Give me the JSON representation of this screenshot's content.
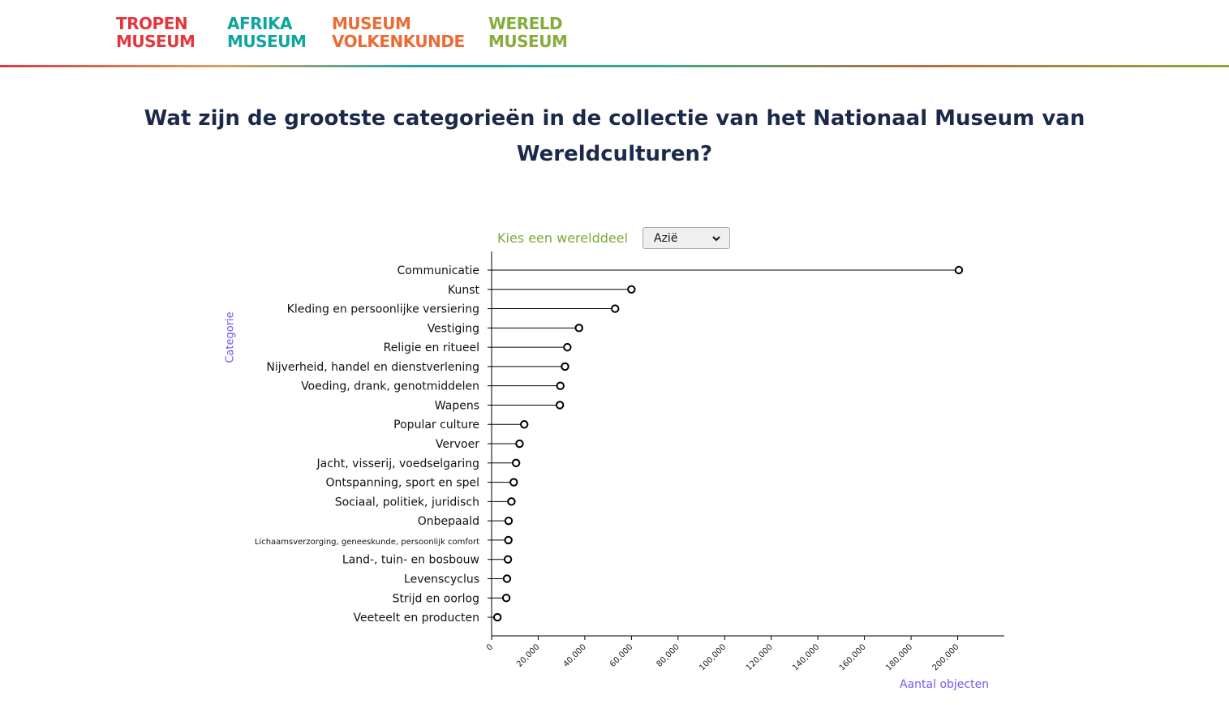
{
  "header": {
    "logos": [
      {
        "lines": [
          "Tropen",
          "Museum"
        ]
      },
      {
        "lines": [
          "Afrika",
          "Museum"
        ]
      },
      {
        "lines": [
          "Museum",
          "Volkenkunde"
        ]
      },
      {
        "lines": [
          "Wereld",
          "Museum"
        ]
      }
    ]
  },
  "page_title": "Wat zijn de grootste categorieën in de collectie van het Nationaal Museum van Wereldculturen?",
  "picker": {
    "label": "Kies een werelddeel",
    "selected": "Azië"
  },
  "colors": {
    "title": "#1b2a4a",
    "picker_label": "#7ba936",
    "axis_title": "#6a5cf0",
    "lollipop": "#000000"
  },
  "chart_data": {
    "type": "lollipop",
    "ylabel": "Categorie",
    "xlabel": "Aantal objecten",
    "xlim": [
      0,
      220000
    ],
    "xticks": [
      0,
      20000,
      40000,
      60000,
      80000,
      100000,
      120000,
      140000,
      160000,
      180000,
      200000
    ],
    "xtick_labels": [
      "0",
      "20,000",
      "40,000",
      "60,000",
      "80,000",
      "100,000",
      "120,000",
      "140,000",
      "160,000",
      "180,000",
      "200,000"
    ],
    "categories": [
      "Communicatie",
      "Kunst",
      "Kleding en persoonlijke versiering",
      "Vestiging",
      "Religie en ritueel",
      "Nijverheid, handel en dienstverlening",
      "Voeding, drank, genotmiddelen",
      "Wapens",
      "Popular culture",
      "Vervoer",
      "Jacht, visserij, voedselgaring",
      "Ontspanning, sport en spel",
      "Sociaal, politiek, juridisch",
      "Onbepaald",
      "Lichaamsverzorging, geneeskunde, persoonlijk comfort",
      "Land-, tuin- en bosbouw",
      "Levenscyclus",
      "Strijd en oorlog",
      "Veeteelt en producten"
    ],
    "values": [
      200500,
      60000,
      53000,
      37500,
      32500,
      31500,
      29500,
      29300,
      14000,
      12000,
      10500,
      9500,
      8500,
      7300,
      7200,
      7000,
      6600,
      6300,
      2500
    ],
    "grid": false
  }
}
